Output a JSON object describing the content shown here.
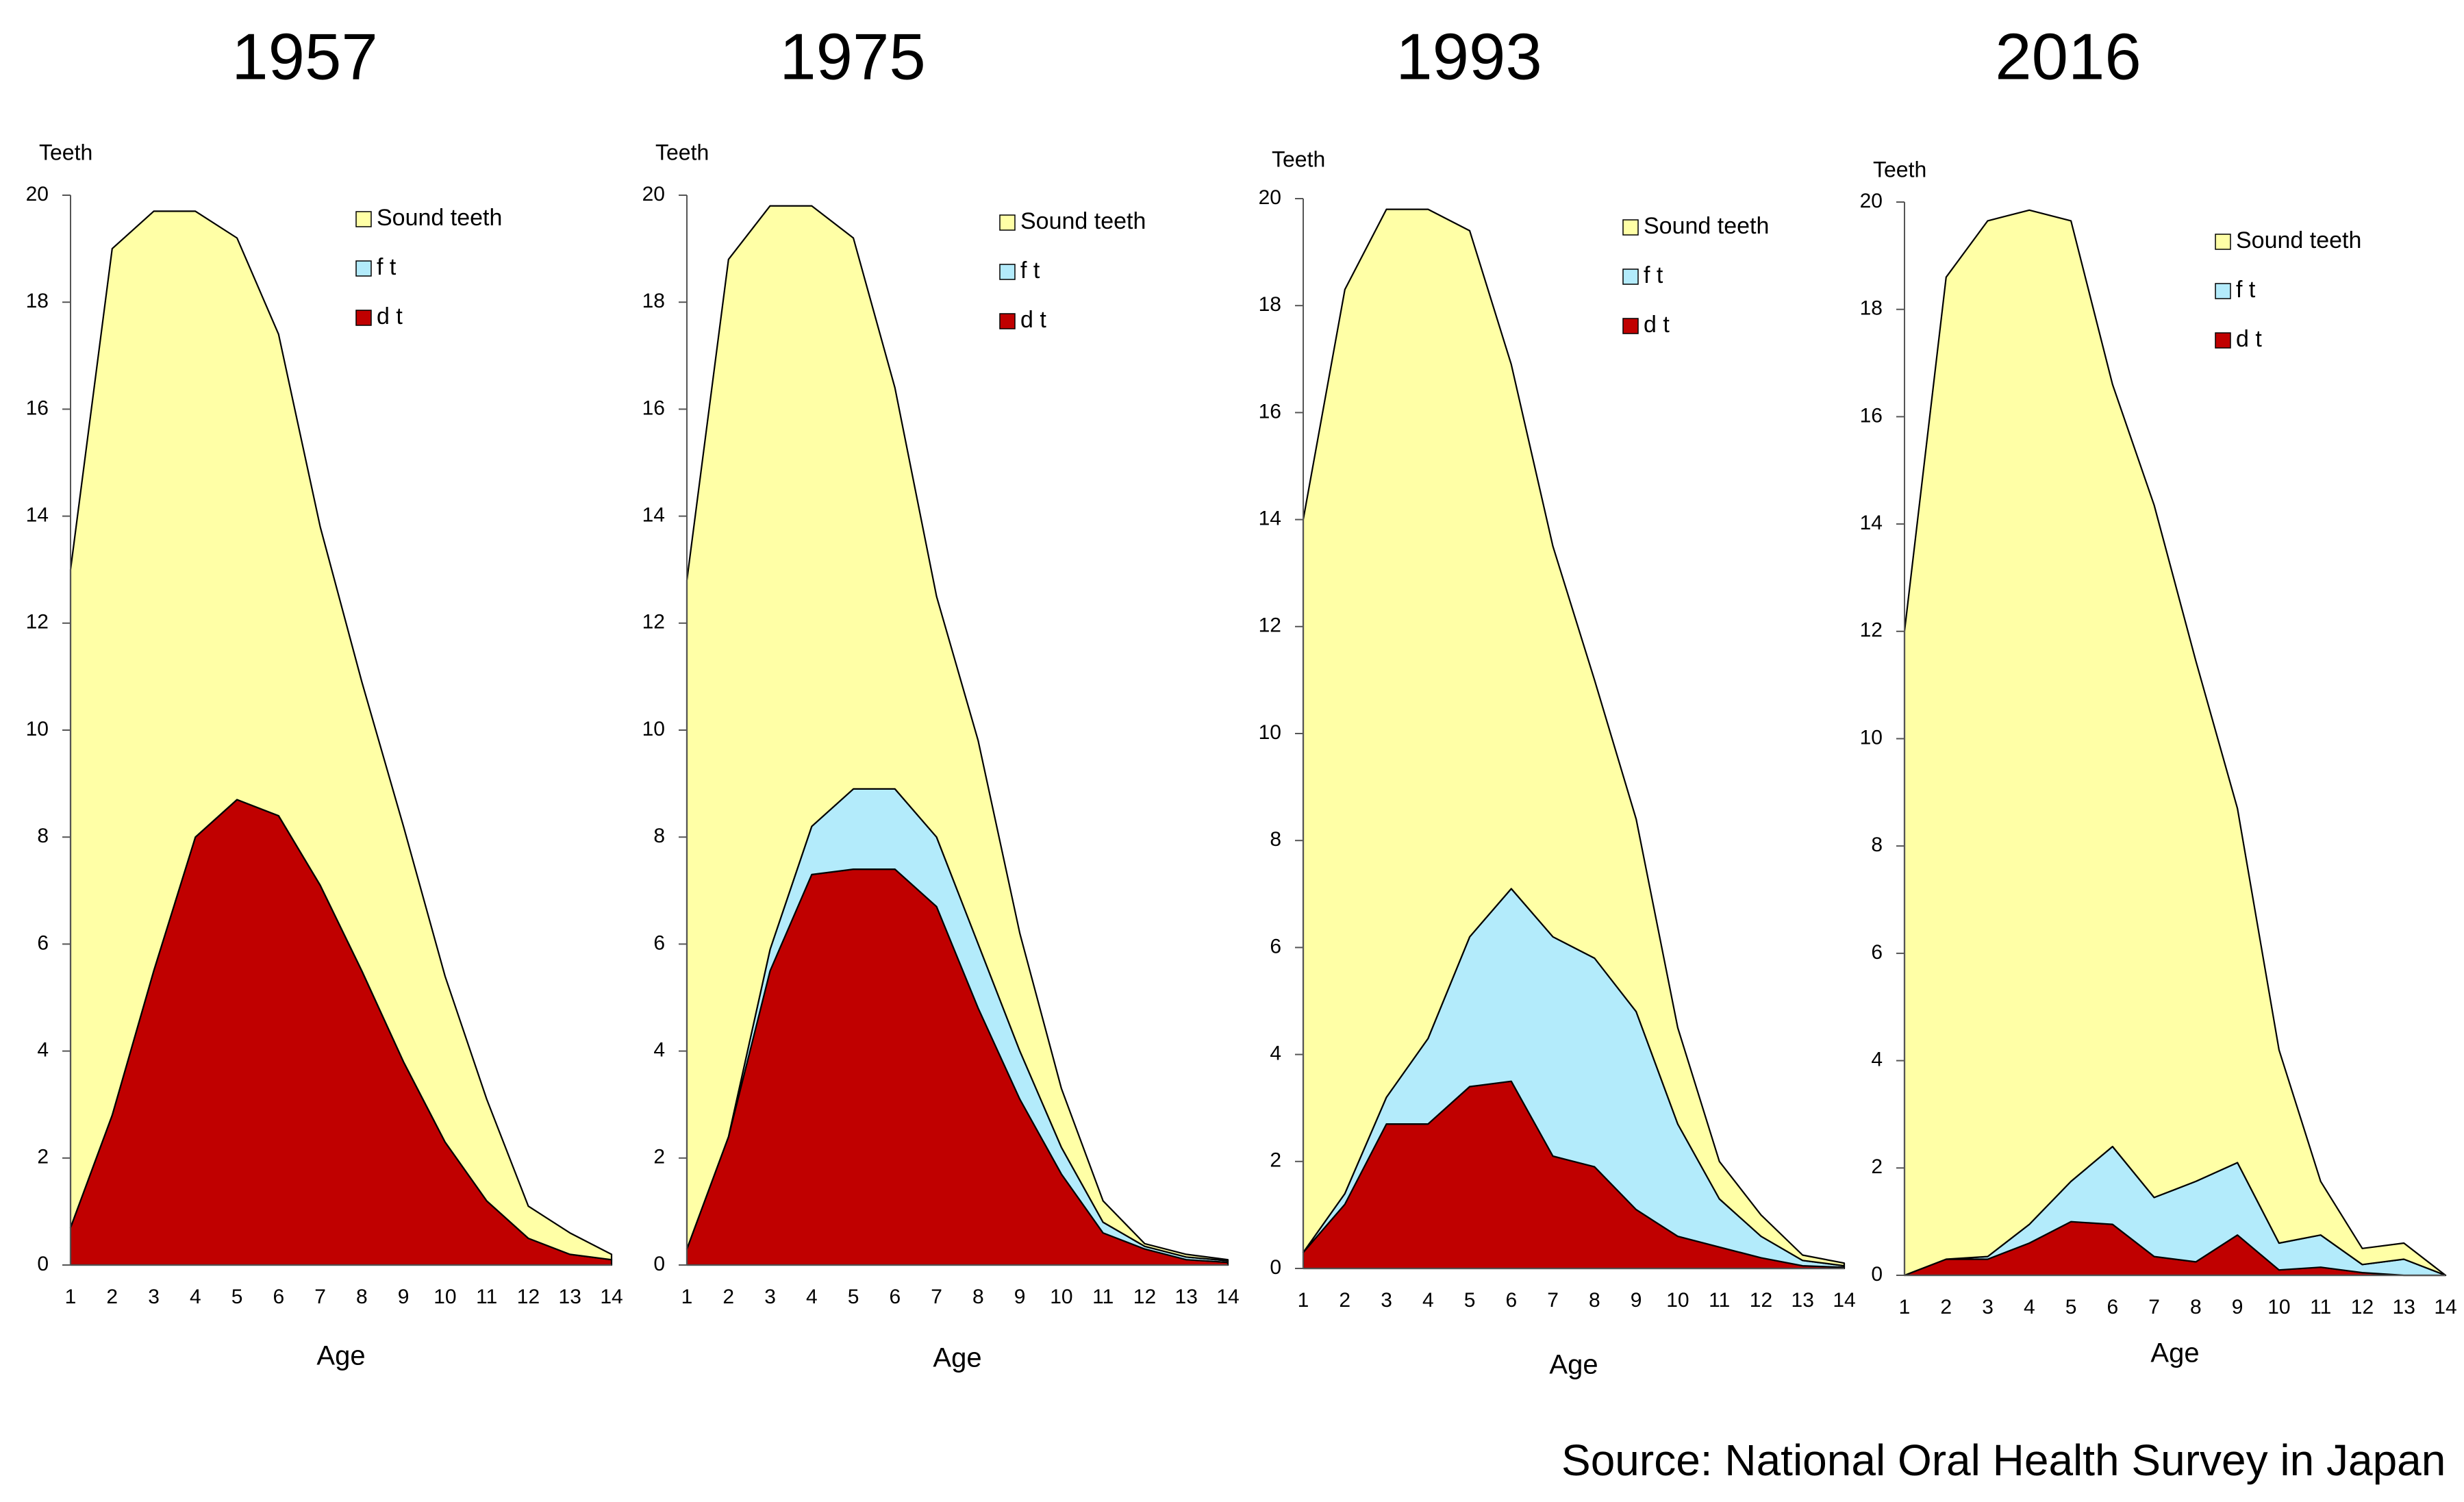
{
  "source_note": "Source: National Oral Health Survey in Japan",
  "colors": {
    "sound": "#FFFFA6",
    "ft": "#B3EBFB",
    "dt": "#C00000",
    "outline": "#000000"
  },
  "chart_data": [
    {
      "type": "area",
      "stacked": true,
      "title": "1957",
      "xlabel": "Age",
      "ylabel": "Teeth",
      "x": [
        1,
        2,
        3,
        4,
        5,
        6,
        7,
        8,
        9,
        10,
        11,
        12,
        13,
        14
      ],
      "ylim": [
        0,
        20
      ],
      "yticks": [
        "0",
        "2",
        "4",
        "6",
        "8",
        "10",
        "12",
        "14",
        "16",
        "18",
        "20"
      ],
      "legend_position": "top-right",
      "series": [
        {
          "name": "d t",
          "color": "#C00000",
          "values": [
            0.7,
            2.8,
            5.5,
            8.0,
            8.7,
            8.4,
            7.1,
            5.5,
            3.8,
            2.3,
            1.2,
            0.5,
            0.2,
            0.1
          ]
        },
        {
          "name": "f t",
          "color": "#B3EBFB",
          "values": [
            0,
            0,
            0,
            0,
            0,
            0,
            0,
            0,
            0,
            0,
            0,
            0,
            0,
            0
          ]
        },
        {
          "name": "Sound teeth",
          "color": "#FFFFA6",
          "values": [
            12.3,
            16.2,
            14.2,
            11.7,
            10.5,
            9.0,
            6.7,
            5.4,
            4.4,
            3.1,
            1.9,
            0.6,
            0.4,
            0.1
          ]
        }
      ]
    },
    {
      "type": "area",
      "stacked": true,
      "title": "1975",
      "xlabel": "Age",
      "ylabel": "Teeth",
      "x": [
        1,
        2,
        3,
        4,
        5,
        6,
        7,
        8,
        9,
        10,
        11,
        12,
        13,
        14
      ],
      "ylim": [
        0,
        20
      ],
      "yticks": [
        "0",
        "2",
        "4",
        "6",
        "8",
        "10",
        "12",
        "14",
        "16",
        "18",
        "20"
      ],
      "legend_position": "top-right",
      "series": [
        {
          "name": "d t",
          "color": "#C00000",
          "values": [
            0.3,
            2.4,
            5.5,
            7.3,
            7.4,
            7.4,
            6.7,
            4.8,
            3.1,
            1.7,
            0.6,
            0.3,
            0.1,
            0.05
          ]
        },
        {
          "name": "f t",
          "color": "#B3EBFB",
          "values": [
            0,
            0,
            0.4,
            0.9,
            1.5,
            1.5,
            1.3,
            1.2,
            0.9,
            0.5,
            0.2,
            0.05,
            0.05,
            0.03
          ]
        },
        {
          "name": "Sound teeth",
          "color": "#FFFFA6",
          "values": [
            12.5,
            16.4,
            13.9,
            11.6,
            10.3,
            7.5,
            4.5,
            3.8,
            2.2,
            1.1,
            0.4,
            0.05,
            0.05,
            0.02
          ]
        }
      ]
    },
    {
      "type": "area",
      "stacked": true,
      "title": "1993",
      "xlabel": "Age",
      "ylabel": "Teeth",
      "x": [
        1,
        2,
        3,
        4,
        5,
        6,
        7,
        8,
        9,
        10,
        11,
        12,
        13,
        14
      ],
      "ylim": [
        0,
        20
      ],
      "yticks": [
        "0",
        "2",
        "4",
        "6",
        "8",
        "10",
        "12",
        "14",
        "16",
        "18",
        "20"
      ],
      "legend_position": "top-right",
      "series": [
        {
          "name": "d t",
          "color": "#C00000",
          "values": [
            0.3,
            1.2,
            2.7,
            2.7,
            3.4,
            3.5,
            2.1,
            1.9,
            1.1,
            0.6,
            0.4,
            0.2,
            0.05,
            0.02
          ]
        },
        {
          "name": "f t",
          "color": "#B3EBFB",
          "values": [
            0,
            0.2,
            0.5,
            1.6,
            2.8,
            3.6,
            4.1,
            3.9,
            3.7,
            2.1,
            0.9,
            0.4,
            0.1,
            0.03
          ]
        },
        {
          "name": "Sound teeth",
          "color": "#FFFFA6",
          "values": [
            13.7,
            16.9,
            16.6,
            15.5,
            13.2,
            9.8,
            7.3,
            5.2,
            3.6,
            1.8,
            0.7,
            0.4,
            0.1,
            0.05
          ]
        }
      ]
    },
    {
      "type": "area",
      "stacked": true,
      "title": "2016",
      "xlabel": "Age",
      "ylabel": "Teeth",
      "x": [
        1,
        2,
        3,
        4,
        5,
        6,
        7,
        8,
        9,
        10,
        11,
        12,
        13,
        14
      ],
      "ylim": [
        0,
        20
      ],
      "yticks": [
        "0",
        "2",
        "4",
        "6",
        "8",
        "10",
        "12",
        "14",
        "16",
        "18",
        "20"
      ],
      "legend_position": "top-right",
      "series": [
        {
          "name": "d t",
          "color": "#C00000",
          "values": [
            0,
            0.3,
            0.3,
            0.6,
            1.0,
            0.95,
            0.35,
            0.25,
            0.75,
            0.1,
            0.15,
            0.05,
            0,
            0
          ]
        },
        {
          "name": "f t",
          "color": "#B3EBFB",
          "values": [
            0,
            0,
            0.05,
            0.35,
            0.75,
            1.45,
            1.1,
            1.5,
            1.35,
            0.5,
            0.6,
            0.15,
            0.3,
            0
          ]
        },
        {
          "name": "Sound teeth",
          "color": "#FFFFA6",
          "values": [
            12.0,
            18.3,
            19.3,
            18.9,
            17.9,
            14.2,
            12.9,
            9.7,
            6.6,
            3.6,
            1.0,
            0.3,
            0.3,
            0
          ]
        }
      ]
    }
  ]
}
